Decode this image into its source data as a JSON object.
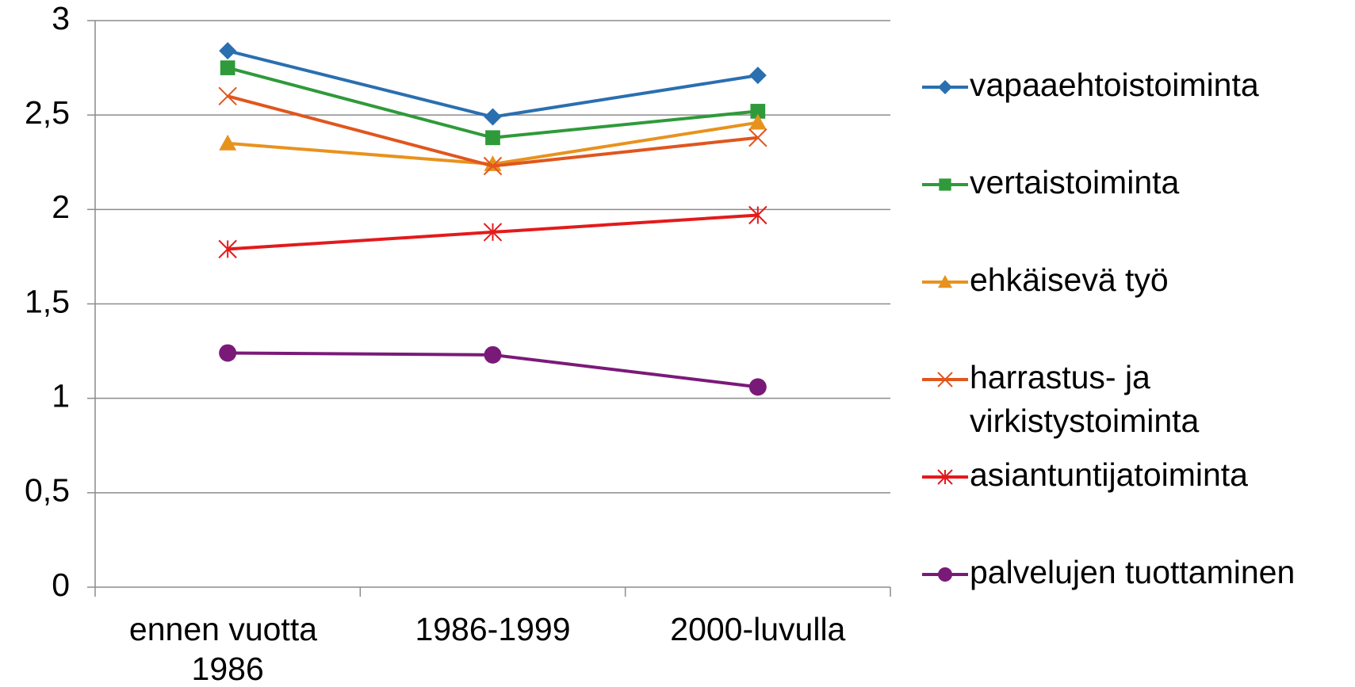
{
  "chart_data": {
    "type": "line",
    "categories": [
      "ennen vuotta 1986",
      "1986-1999",
      "2000-luvulla"
    ],
    "series": [
      {
        "name": "vapaaehtoistoiminta",
        "color": "#2a6fb0",
        "marker": "diamond",
        "values": [
          2.84,
          2.49,
          2.71
        ]
      },
      {
        "name": "vertaistoiminta",
        "color": "#2f9a3a",
        "marker": "square",
        "values": [
          2.75,
          2.38,
          2.52
        ]
      },
      {
        "name": "ehkäisevä työ",
        "color": "#e8921e",
        "marker": "triangle",
        "values": [
          2.35,
          2.24,
          2.46
        ]
      },
      {
        "name": "harrastus- ja virkistystoiminta",
        "color": "#e0561e",
        "marker": "x",
        "values": [
          2.6,
          2.23,
          2.38
        ]
      },
      {
        "name": "asiantuntijatoiminta",
        "color": "#e31a1c",
        "marker": "star",
        "values": [
          1.79,
          1.88,
          1.97
        ]
      },
      {
        "name": "palvelujen tuottaminen",
        "color": "#7a1a78",
        "marker": "circle",
        "values": [
          1.24,
          1.23,
          1.06
        ]
      }
    ],
    "ylim": [
      0,
      3
    ],
    "yticks": [
      0,
      {
        "value": 0.5,
        "label": "0,5"
      },
      1,
      {
        "value": 1.5,
        "label": "1,5"
      },
      2,
      {
        "value": 2.5,
        "label": "2,5"
      },
      3
    ],
    "grid": true,
    "legend": "right"
  }
}
